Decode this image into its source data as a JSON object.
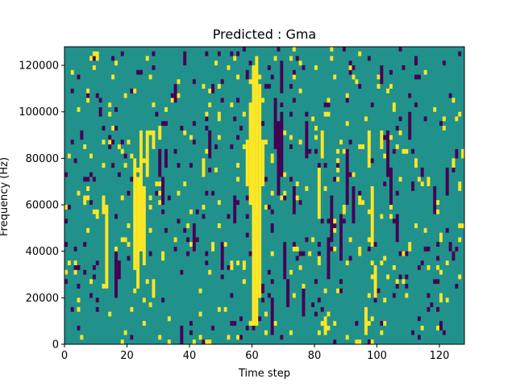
{
  "chart_data": {
    "type": "heatmap",
    "title": "Predicted : Gma",
    "xlabel": "Time step",
    "ylabel": "Frequency (Hz)",
    "xlim": [
      0,
      128
    ],
    "ylim": [
      0,
      128000
    ],
    "x_ticks": [
      0,
      20,
      40,
      60,
      80,
      100,
      120
    ],
    "x_tick_labels": [
      "0",
      "20",
      "40",
      "60",
      "80",
      "100",
      "120"
    ],
    "y_ticks": [
      0,
      20000,
      40000,
      60000,
      80000,
      100000,
      120000
    ],
    "y_tick_labels": [
      "0",
      "20000",
      "40000",
      "60000",
      "80000",
      "100000",
      "120000"
    ],
    "grid": false,
    "colormap": "viridis",
    "colors": {
      "background": "#21918c",
      "high": "#fde725",
      "low": "#440154"
    },
    "time_steps": 128,
    "frequency_bins": 64,
    "background_value": 0.5,
    "cells": [
      {
        "t": 60,
        "f0": 4,
        "f1": 60,
        "v": 1
      },
      {
        "t": 61,
        "f0": 4,
        "f1": 62,
        "v": 1
      },
      {
        "t": 62,
        "f0": 10,
        "f1": 56,
        "v": 1
      },
      {
        "t": 59,
        "f0": 30,
        "f1": 52,
        "v": 1
      },
      {
        "t": 58,
        "f0": 34,
        "f1": 44,
        "v": 1
      },
      {
        "t": 63,
        "f0": 34,
        "f1": 44,
        "v": 1
      },
      {
        "t": 57,
        "f0": 16,
        "f1": 18,
        "v": 1
      },
      {
        "t": 22,
        "f0": 16,
        "f1": 40,
        "v": 1
      },
      {
        "t": 23,
        "f0": 12,
        "f1": 36,
        "v": 1
      },
      {
        "t": 24,
        "f0": 20,
        "f1": 46,
        "v": 1
      },
      {
        "t": 25,
        "f0": 18,
        "f1": 34,
        "v": 1
      },
      {
        "t": 26,
        "f0": 36,
        "f1": 46,
        "v": 1
      },
      {
        "t": 13,
        "f0": 12,
        "f1": 30,
        "v": 1
      },
      {
        "t": 12,
        "f0": 28,
        "f1": 32,
        "v": 1
      },
      {
        "t": 28,
        "f0": 10,
        "f1": 14,
        "v": 1
      },
      {
        "t": 28,
        "f0": 42,
        "f1": 46,
        "v": 1
      },
      {
        "t": 81,
        "f0": 28,
        "f1": 38,
        "v": 1
      },
      {
        "t": 82,
        "f0": 40,
        "f1": 46,
        "v": 1
      },
      {
        "t": 83,
        "f0": 2,
        "f1": 6,
        "v": 1
      },
      {
        "t": 97,
        "f0": 38,
        "f1": 46,
        "v": 1
      },
      {
        "t": 98,
        "f0": 22,
        "f1": 34,
        "v": 1
      },
      {
        "t": 99,
        "f0": 10,
        "f1": 16,
        "v": 1
      },
      {
        "t": 96,
        "f0": 2,
        "f1": 8,
        "v": 1
      },
      {
        "t": 94,
        "f0": 30,
        "f1": 32,
        "v": 1
      },
      {
        "t": 101,
        "f0": 42,
        "f1": 46,
        "v": 1
      },
      {
        "t": 9,
        "f0": 62,
        "f1": 63,
        "v": 1
      },
      {
        "t": 10,
        "f0": 62,
        "f1": 63,
        "v": 1
      },
      {
        "t": 30,
        "f0": 44,
        "f1": 47,
        "v": 1
      },
      {
        "t": 31,
        "f0": 18,
        "f1": 20,
        "v": 1
      },
      {
        "t": 44,
        "f0": 36,
        "f1": 40,
        "v": 1
      },
      {
        "t": 47,
        "f0": 20,
        "f1": 22,
        "v": 1
      },
      {
        "t": 49,
        "f0": 48,
        "f1": 50,
        "v": 1
      },
      {
        "t": 105,
        "f0": 50,
        "f1": 52,
        "v": 1
      },
      {
        "t": 110,
        "f0": 20,
        "f1": 22,
        "v": 1
      },
      {
        "t": 112,
        "f0": 38,
        "f1": 40,
        "v": 1
      },
      {
        "t": 116,
        "f0": 34,
        "f1": 36,
        "v": 1
      },
      {
        "t": 120,
        "f0": 22,
        "f1": 24,
        "v": 1
      },
      {
        "t": 124,
        "f0": 38,
        "f1": 40,
        "v": 1
      },
      {
        "t": 127,
        "f0": 40,
        "f1": 42,
        "v": 1
      },
      {
        "t": 67,
        "f0": 42,
        "f1": 52,
        "v": 0
      },
      {
        "t": 68,
        "f0": 32,
        "f1": 48,
        "v": 0
      },
      {
        "t": 69,
        "f0": 36,
        "f1": 50,
        "v": 0
      },
      {
        "t": 66,
        "f0": 2,
        "f1": 10,
        "v": 0
      },
      {
        "t": 70,
        "f0": 14,
        "f1": 22,
        "v": 0
      },
      {
        "t": 71,
        "f0": 8,
        "f1": 14,
        "v": 0
      },
      {
        "t": 30,
        "f0": 36,
        "f1": 42,
        "v": 0
      },
      {
        "t": 31,
        "f0": 30,
        "f1": 36,
        "v": 0
      },
      {
        "t": 32,
        "f0": 38,
        "f1": 42,
        "v": 0
      },
      {
        "t": 16,
        "f0": 10,
        "f1": 20,
        "v": 0
      },
      {
        "t": 17,
        "f0": 14,
        "f1": 18,
        "v": 0
      },
      {
        "t": 84,
        "f0": 14,
        "f1": 22,
        "v": 0
      },
      {
        "t": 85,
        "f0": 22,
        "f1": 32,
        "v": 0
      },
      {
        "t": 88,
        "f0": 18,
        "f1": 28,
        "v": 0
      },
      {
        "t": 90,
        "f0": 30,
        "f1": 42,
        "v": 0
      },
      {
        "t": 92,
        "f0": 26,
        "f1": 34,
        "v": 0
      },
      {
        "t": 103,
        "f0": 36,
        "f1": 46,
        "v": 0
      },
      {
        "t": 104,
        "f0": 30,
        "f1": 38,
        "v": 0
      },
      {
        "t": 106,
        "f0": 22,
        "f1": 28,
        "v": 0
      },
      {
        "t": 41,
        "f0": 20,
        "f1": 26,
        "v": 0
      },
      {
        "t": 46,
        "f0": 40,
        "f1": 46,
        "v": 0
      },
      {
        "t": 50,
        "f0": 16,
        "f1": 22,
        "v": 0
      },
      {
        "t": 54,
        "f0": 26,
        "f1": 32,
        "v": 0
      },
      {
        "t": 73,
        "f0": 28,
        "f1": 34,
        "v": 0
      },
      {
        "t": 77,
        "f0": 40,
        "f1": 48,
        "v": 0
      },
      {
        "t": 110,
        "f0": 44,
        "f1": 50,
        "v": 0
      },
      {
        "t": 118,
        "f0": 28,
        "f1": 34,
        "v": 0
      },
      {
        "t": 122,
        "f0": 32,
        "f1": 38,
        "v": 0
      },
      {
        "t": 125,
        "f0": 40,
        "f1": 42,
        "v": 0
      },
      {
        "t": 35,
        "f0": 52,
        "f1": 56,
        "v": 0
      },
      {
        "t": 37,
        "f0": 0,
        "f1": 4,
        "v": 0
      },
      {
        "t": 69,
        "f0": 54,
        "f1": 60,
        "v": 0
      },
      {
        "t": 76,
        "f0": 6,
        "f1": 12,
        "v": 0
      },
      {
        "t": 101,
        "f0": 56,
        "f1": 60,
        "v": 0
      }
    ],
    "sparse_seed": 7
  }
}
